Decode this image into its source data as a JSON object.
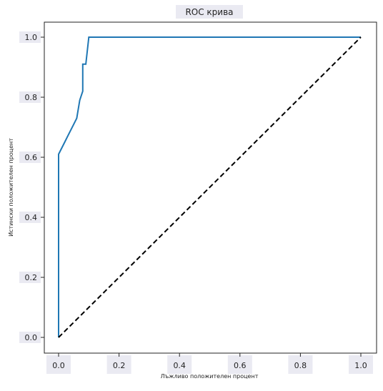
{
  "chart_data": {
    "type": "line",
    "title": "ROC крива",
    "xlabel": "Лъжливо положителен процент",
    "ylabel": "Истински положителен процент",
    "xlim": [
      0,
      1
    ],
    "ylim": [
      0,
      1
    ],
    "x_ticks": [
      "0.0",
      "0.2",
      "0.4",
      "0.6",
      "0.8",
      "1.0"
    ],
    "y_ticks": [
      "0.0",
      "0.2",
      "0.4",
      "0.6",
      "0.8",
      "1.0"
    ],
    "grid": false,
    "series": [
      {
        "color": "#1f77b4",
        "style": "solid",
        "x": [
          0.0,
          0.0,
          0.0,
          0.02,
          0.03,
          0.05,
          0.06,
          0.07,
          0.08,
          0.08,
          0.09,
          0.09,
          0.1,
          0.1,
          1.0
        ],
        "y": [
          0.0,
          0.08,
          0.61,
          0.65,
          0.67,
          0.71,
          0.73,
          0.79,
          0.82,
          0.91,
          0.91,
          0.91,
          1.0,
          1.0,
          1.0
        ]
      },
      {
        "color": "#000000",
        "style": "dashed",
        "x": [
          0.0,
          1.0
        ],
        "y": [
          0.0,
          1.0
        ]
      }
    ]
  }
}
